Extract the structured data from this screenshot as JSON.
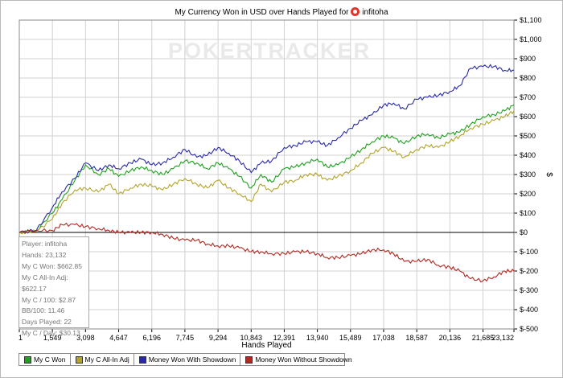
{
  "title": "My Currency Won in USD over Hands Played for",
  "player_name": "infitoha",
  "watermark": "POKERTRACKER",
  "stats": {
    "player": "Player: infitoha",
    "hands": "Hands: 23,132",
    "won": "My C Won: $662.85",
    "allin_adj": "My C All-In Adj: $622.17",
    "per_100": "My C / 100: $2.87",
    "bb_100": "BB/100: 11.46",
    "days_played": "Days Played: 22",
    "per_day": "My C / Day: $30.13"
  },
  "colors": {
    "won": "#20a020",
    "allin": "#b3a52c",
    "showdown": "#2a2aa8",
    "no_showdown": "#b02a22",
    "grid": "#d0d0d0",
    "zero_line": "#000000"
  },
  "chart_data": {
    "type": "line",
    "title": "My Currency Won in USD over Hands Played for infitoha",
    "xlabel": "Hands Played",
    "ylabel": "$",
    "xlim": [
      1,
      23132
    ],
    "ylim": [
      -500,
      1100
    ],
    "x_ticks": [
      "1",
      "1,549",
      "3,098",
      "4,647",
      "6,196",
      "7,745",
      "9,294",
      "10,843",
      "12,391",
      "13,940",
      "15,489",
      "17,038",
      "18,587",
      "20,136",
      "21,685",
      "23,132"
    ],
    "y_ticks": [
      "$1,100",
      "$1,000",
      "$900",
      "$800",
      "$700",
      "$600",
      "$500",
      "$400",
      "$300",
      "$200",
      "$100",
      "$0",
      "$-100",
      "$-200",
      "$-300",
      "$-400",
      "$-500"
    ],
    "grid": true,
    "legend_position": "bottom",
    "series": [
      {
        "name": "My C Won",
        "key": "won",
        "x": [
          1,
          800,
          1549,
          2000,
          2600,
          3098,
          3700,
          4200,
          4647,
          5200,
          5700,
          6196,
          6700,
          7200,
          7745,
          8300,
          8800,
          9294,
          9800,
          10300,
          10843,
          11300,
          11800,
          12391,
          12900,
          13400,
          13940,
          14400,
          14900,
          15489,
          16000,
          16500,
          17038,
          17500,
          18000,
          18587,
          19100,
          19600,
          20136,
          20600,
          21100,
          21685,
          22200,
          22700,
          23132
        ],
        "y": [
          0,
          10,
          100,
          170,
          270,
          350,
          300,
          330,
          290,
          320,
          340,
          320,
          300,
          330,
          370,
          360,
          330,
          360,
          330,
          290,
          230,
          300,
          260,
          330,
          340,
          360,
          380,
          340,
          350,
          390,
          430,
          470,
          500,
          490,
          460,
          500,
          510,
          490,
          510,
          520,
          560,
          600,
          610,
          630,
          660
        ]
      },
      {
        "name": "My C All-In Adj",
        "key": "allin",
        "x": [
          1,
          800,
          1549,
          2000,
          2600,
          3098,
          3700,
          4200,
          4647,
          5200,
          5700,
          6196,
          6700,
          7200,
          7745,
          8300,
          8800,
          9294,
          9800,
          10300,
          10843,
          11300,
          11800,
          12391,
          12900,
          13400,
          13940,
          14400,
          14900,
          15489,
          16000,
          16500,
          17038,
          17500,
          18000,
          18587,
          19100,
          19600,
          20136,
          20600,
          21100,
          21685,
          22200,
          22700,
          23132
        ],
        "y": [
          0,
          5,
          70,
          150,
          220,
          230,
          210,
          250,
          200,
          230,
          250,
          240,
          220,
          250,
          280,
          250,
          230,
          270,
          230,
          200,
          160,
          250,
          210,
          260,
          270,
          300,
          300,
          270,
          290,
          320,
          360,
          410,
          440,
          420,
          390,
          430,
          450,
          440,
          470,
          500,
          540,
          560,
          580,
          600,
          630
        ]
      },
      {
        "name": "Money Won With Showdown",
        "key": "showdown",
        "x": [
          1,
          800,
          1549,
          2000,
          2600,
          3098,
          3700,
          4200,
          4647,
          5200,
          5700,
          6196,
          6700,
          7200,
          7745,
          8300,
          8800,
          9294,
          9800,
          10300,
          10843,
          11300,
          11800,
          12391,
          12900,
          13400,
          13940,
          14400,
          14900,
          15489,
          16000,
          16500,
          17038,
          17500,
          18000,
          18587,
          19100,
          19600,
          20136,
          20600,
          21100,
          21685,
          22200,
          22700,
          23132
        ],
        "y": [
          0,
          10,
          130,
          210,
          280,
          360,
          320,
          350,
          330,
          360,
          380,
          350,
          360,
          390,
          430,
          390,
          400,
          440,
          410,
          370,
          310,
          360,
          370,
          440,
          450,
          470,
          470,
          450,
          490,
          540,
          580,
          610,
          660,
          670,
          640,
          690,
          700,
          710,
          730,
          760,
          850,
          860,
          860,
          840,
          840
        ]
      },
      {
        "name": "Money Won Without Showdown",
        "key": "no_showdown",
        "x": [
          1,
          800,
          1549,
          2000,
          2600,
          3098,
          3700,
          4200,
          4647,
          5200,
          5700,
          6196,
          6700,
          7200,
          7745,
          8300,
          8800,
          9294,
          9800,
          10300,
          10843,
          11300,
          11800,
          12391,
          12900,
          13400,
          13940,
          14400,
          14900,
          15489,
          16000,
          16500,
          17038,
          17500,
          18000,
          18587,
          19100,
          19600,
          20136,
          20600,
          21100,
          21685,
          22200,
          22700,
          23132
        ],
        "y": [
          0,
          10,
          10,
          40,
          40,
          30,
          20,
          10,
          0,
          0,
          0,
          0,
          -10,
          -30,
          -40,
          -40,
          -60,
          -70,
          -70,
          -80,
          -100,
          -100,
          -110,
          -110,
          -100,
          -100,
          -110,
          -130,
          -130,
          -120,
          -110,
          -90,
          -90,
          -110,
          -150,
          -150,
          -140,
          -170,
          -180,
          -200,
          -240,
          -250,
          -230,
          -200,
          -200
        ]
      }
    ]
  }
}
